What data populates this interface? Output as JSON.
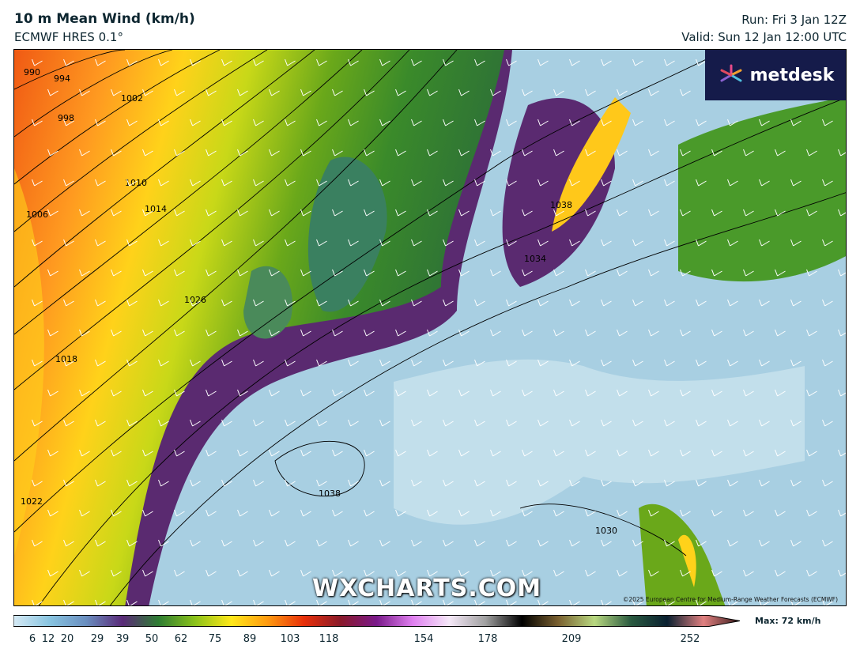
{
  "header": {
    "title": "10 m Mean Wind (km/h)",
    "model": "ECMWF HRES 0.1°",
    "run": "Run: Fri 3 Jan 12Z",
    "valid": "Valid: Sun 12 Jan 12:00 UTC"
  },
  "logo": {
    "text": "metdesk"
  },
  "watermark": "WXCHARTS.COM",
  "copyright": "©2025 European Centre for Medium-Range Weather Forecasts (ECMWF)",
  "isobar_labels": [
    "990",
    "994",
    "998",
    "1002",
    "1006",
    "1010",
    "1014",
    "1018",
    "1022",
    "1026",
    "1034",
    "1038",
    "1038",
    "1030"
  ],
  "colorbar": {
    "ticks": [
      "6",
      "12",
      "20",
      "29",
      "39",
      "50",
      "62",
      "75",
      "89",
      "103",
      "118",
      "154",
      "178",
      "209",
      "252"
    ],
    "max_label": "Max: 72 km/h",
    "colors": [
      "#d6eaf5",
      "#88c4e0",
      "#6a8fc0",
      "#5a2a78",
      "#2e7d32",
      "#8bc21a",
      "#ffe81a",
      "#ff9a10",
      "#e8300a",
      "#8a1a2a",
      "#7a1a8a",
      "#e080f0",
      "#f5e8f8",
      "#a0a0a0",
      "#000000",
      "#7a6030",
      "#b8d880",
      "#2a5a40",
      "#0a2030",
      "#e08080",
      "#3a1a1a"
    ]
  }
}
